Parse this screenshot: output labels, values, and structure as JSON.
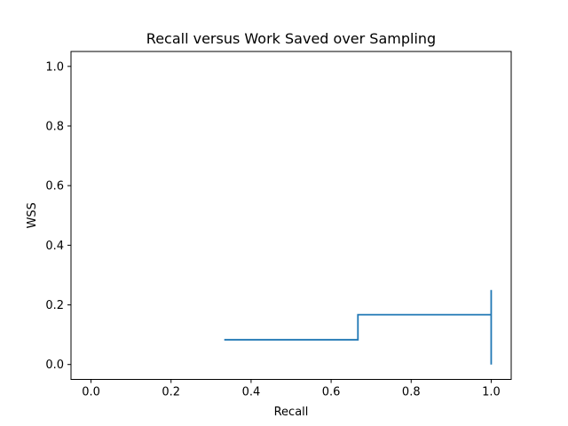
{
  "chart_data": {
    "type": "line",
    "title": "Recall versus Work Saved over Sampling",
    "xlabel": "Recall",
    "ylabel": "WSS",
    "xlim": [
      -0.05,
      1.05
    ],
    "ylim": [
      -0.05,
      1.05
    ],
    "xticks": [
      0.0,
      0.2,
      0.4,
      0.6,
      0.8,
      1.0
    ],
    "xtick_labels": [
      "0.0",
      "0.2",
      "0.4",
      "0.6",
      "0.8",
      "1.0"
    ],
    "yticks": [
      0.0,
      0.2,
      0.4,
      0.6,
      0.8,
      1.0
    ],
    "ytick_labels": [
      "0.0",
      "0.2",
      "0.4",
      "0.6",
      "0.8",
      "1.0"
    ],
    "grid": false,
    "series": [
      {
        "color": "#1f77b4",
        "x": [
          0.333,
          0.667,
          0.667,
          1.0,
          1.0,
          1.0
        ],
        "y": [
          0.083,
          0.083,
          0.167,
          0.167,
          0.25,
          0.0
        ]
      }
    ]
  }
}
